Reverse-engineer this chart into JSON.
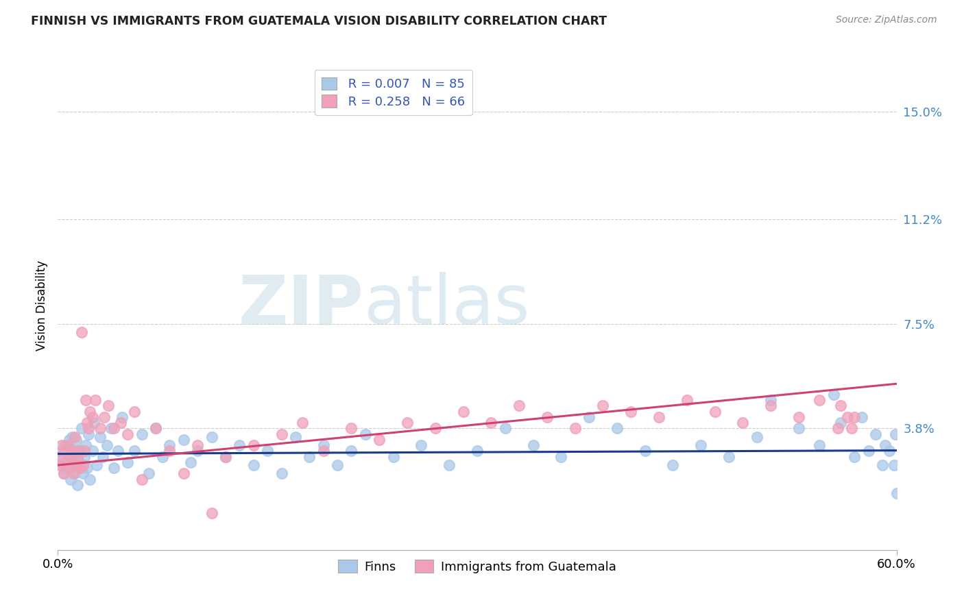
{
  "title": "FINNISH VS IMMIGRANTS FROM GUATEMALA VISION DISABILITY CORRELATION CHART",
  "source": "Source: ZipAtlas.com",
  "xlabel_ticks": [
    "0.0%",
    "60.0%"
  ],
  "ylabel": "Vision Disability",
  "ytick_labels": [
    "3.8%",
    "7.5%",
    "11.2%",
    "15.0%"
  ],
  "ytick_values": [
    0.038,
    0.075,
    0.112,
    0.15
  ],
  "xlim": [
    0.0,
    0.6
  ],
  "ylim": [
    -0.005,
    0.168
  ],
  "watermark_zip": "ZIP",
  "watermark_atlas": "atlas",
  "legend_r1": "R = 0.007",
  "legend_n1": "N = 85",
  "legend_r2": "R = 0.258",
  "legend_n2": "N = 66",
  "legend_label1": "Finns",
  "legend_label2": "Immigrants from Guatemala",
  "color_finns": "#aac8e8",
  "color_guatemala": "#f0a0b8",
  "line_color_finns": "#1a3a8a",
  "line_color_guatemala": "#d04070",
  "legend_text_color": "#3355bb",
  "ytick_color": "#4488cc",
  "grid_color": "#cccccc",
  "title_color": "#222222",
  "source_color": "#888888",
  "finns_x": [
    0.001,
    0.002,
    0.003,
    0.004,
    0.005,
    0.006,
    0.007,
    0.008,
    0.009,
    0.01,
    0.01,
    0.011,
    0.012,
    0.013,
    0.014,
    0.015,
    0.016,
    0.017,
    0.018,
    0.019,
    0.02,
    0.021,
    0.022,
    0.023,
    0.025,
    0.026,
    0.028,
    0.03,
    0.032,
    0.035,
    0.038,
    0.04,
    0.043,
    0.046,
    0.05,
    0.055,
    0.06,
    0.065,
    0.07,
    0.075,
    0.08,
    0.09,
    0.095,
    0.1,
    0.11,
    0.12,
    0.13,
    0.14,
    0.15,
    0.16,
    0.17,
    0.18,
    0.19,
    0.2,
    0.21,
    0.22,
    0.24,
    0.26,
    0.28,
    0.3,
    0.32,
    0.34,
    0.36,
    0.38,
    0.4,
    0.42,
    0.44,
    0.46,
    0.48,
    0.5,
    0.51,
    0.53,
    0.545,
    0.555,
    0.56,
    0.57,
    0.575,
    0.58,
    0.585,
    0.59,
    0.592,
    0.595,
    0.598,
    0.599,
    0.6
  ],
  "finns_y": [
    0.028,
    0.025,
    0.03,
    0.022,
    0.032,
    0.024,
    0.026,
    0.034,
    0.02,
    0.028,
    0.035,
    0.03,
    0.022,
    0.034,
    0.018,
    0.026,
    0.03,
    0.038,
    0.022,
    0.028,
    0.032,
    0.024,
    0.036,
    0.02,
    0.03,
    0.04,
    0.025,
    0.035,
    0.028,
    0.032,
    0.038,
    0.024,
    0.03,
    0.042,
    0.026,
    0.03,
    0.036,
    0.022,
    0.038,
    0.028,
    0.032,
    0.034,
    0.026,
    0.03,
    0.035,
    0.028,
    0.032,
    0.025,
    0.03,
    0.022,
    0.035,
    0.028,
    0.032,
    0.025,
    0.03,
    0.036,
    0.028,
    0.032,
    0.025,
    0.03,
    0.038,
    0.032,
    0.028,
    0.042,
    0.038,
    0.03,
    0.025,
    0.032,
    0.028,
    0.035,
    0.048,
    0.038,
    0.032,
    0.05,
    0.04,
    0.028,
    0.042,
    0.03,
    0.036,
    0.025,
    0.032,
    0.03,
    0.025,
    0.036,
    0.015
  ],
  "guatemala_x": [
    0.001,
    0.002,
    0.003,
    0.004,
    0.005,
    0.006,
    0.007,
    0.008,
    0.009,
    0.01,
    0.011,
    0.012,
    0.013,
    0.014,
    0.015,
    0.016,
    0.017,
    0.018,
    0.019,
    0.02,
    0.021,
    0.022,
    0.023,
    0.025,
    0.027,
    0.03,
    0.033,
    0.036,
    0.04,
    0.045,
    0.05,
    0.055,
    0.06,
    0.07,
    0.08,
    0.09,
    0.1,
    0.11,
    0.12,
    0.14,
    0.16,
    0.175,
    0.19,
    0.21,
    0.23,
    0.25,
    0.27,
    0.29,
    0.31,
    0.33,
    0.35,
    0.37,
    0.39,
    0.41,
    0.43,
    0.45,
    0.47,
    0.49,
    0.51,
    0.53,
    0.545,
    0.558,
    0.56,
    0.565,
    0.568,
    0.57
  ],
  "guatemala_y": [
    0.028,
    0.025,
    0.032,
    0.022,
    0.03,
    0.026,
    0.032,
    0.024,
    0.028,
    0.03,
    0.022,
    0.035,
    0.025,
    0.028,
    0.03,
    0.024,
    0.072,
    0.025,
    0.03,
    0.048,
    0.04,
    0.038,
    0.044,
    0.042,
    0.048,
    0.038,
    0.042,
    0.046,
    0.038,
    0.04,
    0.036,
    0.044,
    0.02,
    0.038,
    0.03,
    0.022,
    0.032,
    0.008,
    0.028,
    0.032,
    0.036,
    0.04,
    0.03,
    0.038,
    0.034,
    0.04,
    0.038,
    0.044,
    0.04,
    0.046,
    0.042,
    0.038,
    0.046,
    0.044,
    0.042,
    0.048,
    0.044,
    0.04,
    0.046,
    0.042,
    0.048,
    0.038,
    0.046,
    0.042,
    0.038,
    0.042
  ]
}
